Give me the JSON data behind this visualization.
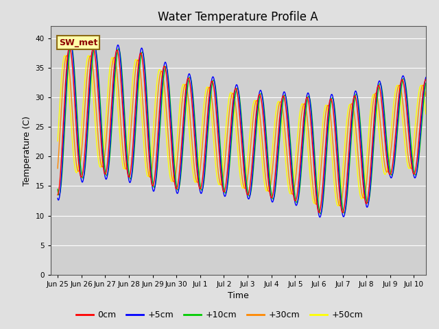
{
  "title": "Water Temperature Profile A",
  "xlabel": "Time",
  "ylabel": "Temperature (C)",
  "ylim": [
    0,
    42
  ],
  "yticks": [
    0,
    5,
    10,
    15,
    20,
    25,
    30,
    35,
    40
  ],
  "tick_labels": [
    "Jun 25",
    "Jun 26",
    "Jun 27",
    "Jun 28",
    "Jun 29",
    "Jun 30",
    "Jul 1",
    "Jul 2",
    "Jul 3",
    "Jul 4",
    "Jul 5",
    "Jul 6",
    "Jul 7",
    "Jul 8",
    "Jul 9",
    "Jul 10"
  ],
  "series_colors": [
    "#ff0000",
    "#0000ff",
    "#00cc00",
    "#ff8800",
    "#ffff00"
  ],
  "series_labels": [
    "0cm",
    "+5cm",
    "+10cm",
    "+30cm",
    "+50cm"
  ],
  "annotation_text": "SW_met",
  "bg_color": "#e0e0e0",
  "plot_bg_color": "#d0d0d0",
  "title_fontsize": 12,
  "axis_fontsize": 9,
  "legend_fontsize": 9,
  "peak_temps": [
    38.5,
    38.5,
    38.0,
    38.0,
    37.0,
    33.5,
    33.0,
    32.5,
    30.5,
    30.5,
    30.0,
    30.0,
    29.5,
    31.0,
    33.0
  ],
  "trough_temps": [
    13.5,
    16.5,
    17.0,
    16.5,
    15.0,
    14.5,
    14.5,
    14.0,
    13.5,
    13.0,
    12.5,
    10.5,
    10.5,
    12.0,
    17.0
  ],
  "phase_shifts": [
    0.0,
    -0.04,
    -0.07,
    0.12,
    0.2
  ],
  "amp_scales": [
    1.0,
    1.08,
    1.02,
    0.88,
    0.88
  ]
}
